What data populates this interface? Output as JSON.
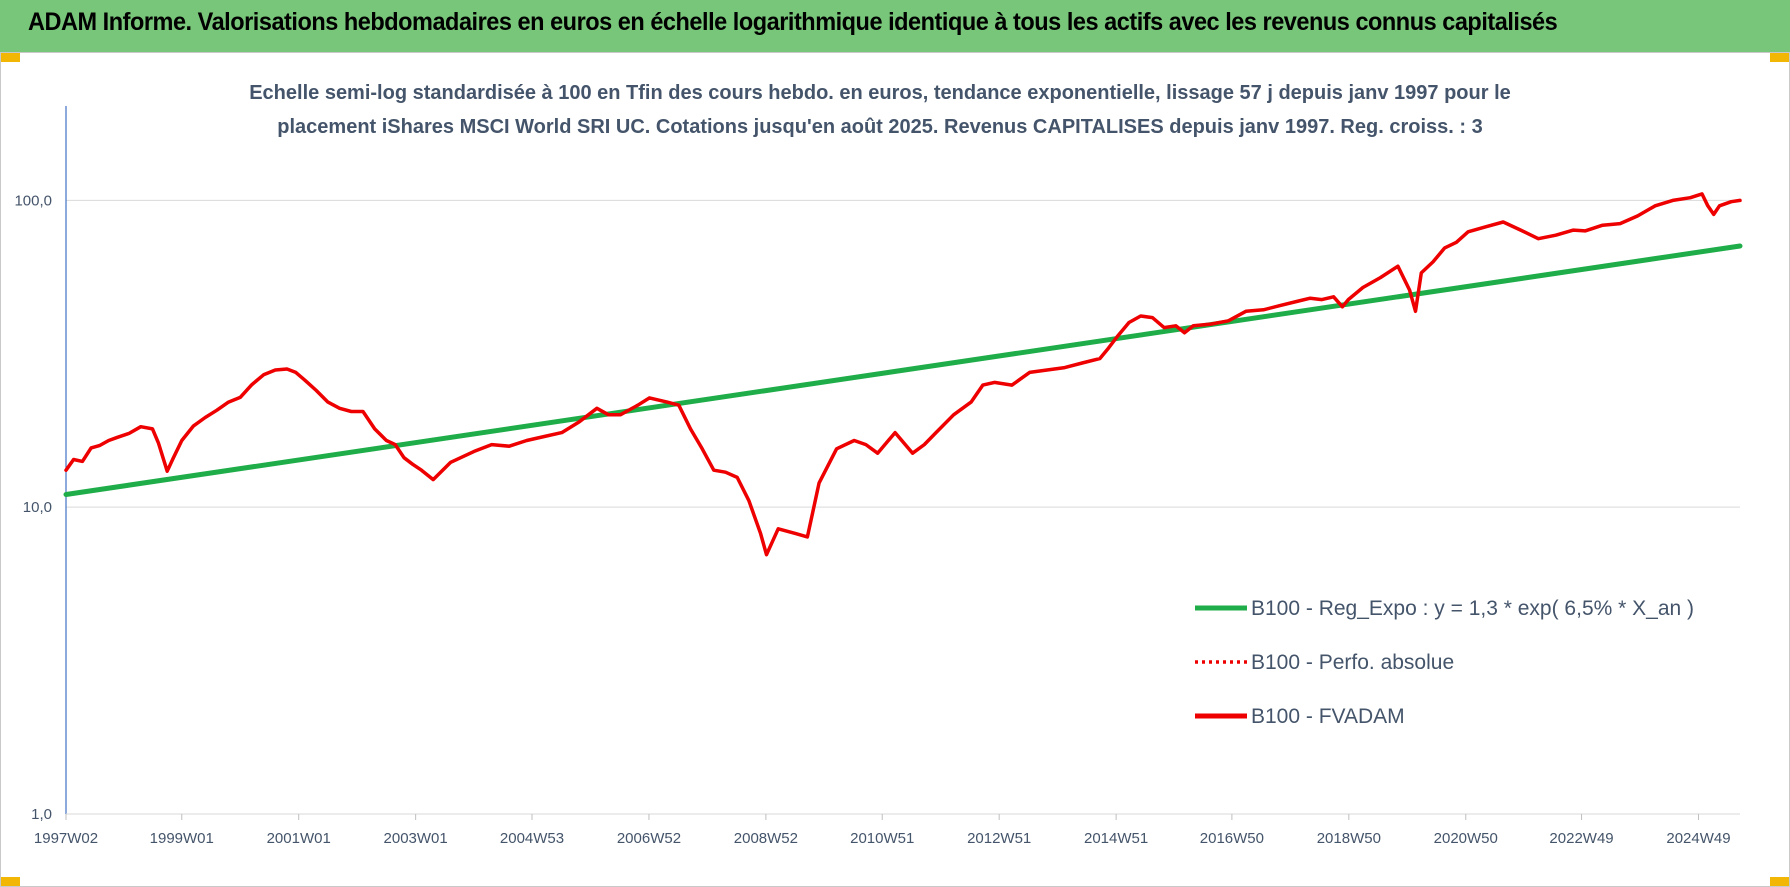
{
  "header": {
    "title": "ADAM Informe. Valorisations hebdomadaires en euros en échelle logarithmique identique à tous les actifs avec les revenus connus capitalisés"
  },
  "colors": {
    "header_bg": "#78c679",
    "corner_accent": "#f2b705",
    "trend_line": "#1fad4a",
    "series_line": "#ee0000",
    "axis": "#4472c4",
    "grid": "#d9d9d9",
    "text": "#44546a"
  },
  "chart_data": {
    "type": "line",
    "subtitle_lines": [
      "Echelle semi-log standardisée à 100 en Tfin des cours hebdo. en euros, tendance exponentielle, lissage 57 j depuis janv 1997 pour le",
      "placement iShares MSCI World SRI UC. Cotations jusqu'en août 2025. Revenus CAPITALISES depuis janv 1997. Reg. croiss. : 3"
    ],
    "y_scale": "log",
    "ylim": [
      1,
      200
    ],
    "y_ticks": [
      {
        "value": 1,
        "label": "1,0"
      },
      {
        "value": 10,
        "label": "10,0"
      },
      {
        "value": 100,
        "label": "100,0"
      }
    ],
    "xlim": [
      1997.02,
      2025.65
    ],
    "x_ticks": [
      {
        "value": 1997.02,
        "label": "1997W02"
      },
      {
        "value": 1999.0,
        "label": "1999W01"
      },
      {
        "value": 2001.0,
        "label": "2001W01"
      },
      {
        "value": 2003.0,
        "label": "2003W01"
      },
      {
        "value": 2004.99,
        "label": "2004W53"
      },
      {
        "value": 2006.99,
        "label": "2006W52"
      },
      {
        "value": 2008.99,
        "label": "2008W52"
      },
      {
        "value": 2010.98,
        "label": "2010W51"
      },
      {
        "value": 2012.98,
        "label": "2012W51"
      },
      {
        "value": 2014.98,
        "label": "2014W51"
      },
      {
        "value": 2016.96,
        "label": "2016W50"
      },
      {
        "value": 2018.96,
        "label": "2018W50"
      },
      {
        "value": 2020.96,
        "label": "2020W50"
      },
      {
        "value": 2022.94,
        "label": "2022W49"
      },
      {
        "value": 2024.94,
        "label": "2024W49"
      }
    ],
    "grid": {
      "horizontal": true,
      "vertical": false
    },
    "legend_position": "right",
    "series": [
      {
        "name": "B100 - Reg_Expo : y = 1,3 * exp( 6,5% *  X_an )",
        "style": "solid",
        "color": "#1fad4a",
        "x": [
          1997.02,
          2025.65
        ],
        "y": [
          11.0,
          71.0
        ]
      },
      {
        "name": "B100 - Perfo. absolue",
        "style": "dotted",
        "color": "#ee0000",
        "x": [],
        "y": []
      },
      {
        "name": "B100 - FVADAM",
        "style": "solid",
        "color": "#ee0000",
        "x": [
          1997.02,
          1997.15,
          1997.3,
          1997.45,
          1997.6,
          1997.75,
          1997.9,
          1998.1,
          1998.3,
          1998.5,
          1998.6,
          1998.75,
          1998.85,
          1999.0,
          1999.2,
          1999.4,
          1999.6,
          1999.8,
          2000.0,
          2000.2,
          2000.4,
          2000.6,
          2000.8,
          2000.95,
          2001.1,
          2001.3,
          2001.5,
          2001.7,
          2001.9,
          2002.1,
          2002.3,
          2002.5,
          2002.65,
          2002.8,
          2002.95,
          2003.1,
          2003.3,
          2003.6,
          2004.0,
          2004.3,
          2004.6,
          2004.9,
          2005.2,
          2005.5,
          2005.8,
          2006.1,
          2006.3,
          2006.5,
          2006.8,
          2007.0,
          2007.3,
          2007.5,
          2007.7,
          2007.9,
          2008.1,
          2008.3,
          2008.5,
          2008.7,
          2008.9,
          2009.0,
          2009.2,
          2009.5,
          2009.7,
          2009.9,
          2010.2,
          2010.5,
          2010.7,
          2010.9,
          2011.2,
          2011.5,
          2011.7,
          2011.9,
          2012.2,
          2012.5,
          2012.7,
          2012.9,
          2013.2,
          2013.5,
          2013.8,
          2014.1,
          2014.4,
          2014.7,
          2014.85,
          2015.0,
          2015.2,
          2015.4,
          2015.6,
          2015.8,
          2016.0,
          2016.15,
          2016.3,
          2016.6,
          2016.9,
          2017.2,
          2017.5,
          2017.8,
          2018.1,
          2018.3,
          2018.5,
          2018.7,
          2018.85,
          2018.95,
          2019.2,
          2019.5,
          2019.8,
          2020.0,
          2020.1,
          2020.2,
          2020.4,
          2020.6,
          2020.8,
          2021.0,
          2021.3,
          2021.6,
          2021.9,
          2022.2,
          2022.5,
          2022.8,
          2023.0,
          2023.3,
          2023.6,
          2023.9,
          2024.2,
          2024.5,
          2024.8,
          2025.0,
          2025.1,
          2025.2,
          2025.3,
          2025.5,
          2025.65
        ],
        "y": [
          13.2,
          14.3,
          14.1,
          15.6,
          15.9,
          16.5,
          16.9,
          17.4,
          18.3,
          18.0,
          16.2,
          13.1,
          14.4,
          16.5,
          18.4,
          19.6,
          20.7,
          22.0,
          22.8,
          25.1,
          27.0,
          28.0,
          28.2,
          27.5,
          26.0,
          24.0,
          22.0,
          21.0,
          20.5,
          20.5,
          18.0,
          16.5,
          16.0,
          14.5,
          13.8,
          13.2,
          12.3,
          14.0,
          15.2,
          16.0,
          15.8,
          16.5,
          17.0,
          17.5,
          19.0,
          21.0,
          20.0,
          20.0,
          21.5,
          22.7,
          22.0,
          21.5,
          18.0,
          15.5,
          13.2,
          13.0,
          12.5,
          10.5,
          8.2,
          7.0,
          8.5,
          8.2,
          8.0,
          12.0,
          15.5,
          16.5,
          16.0,
          15.0,
          17.5,
          15.0,
          16.0,
          17.5,
          20.0,
          22.0,
          25.0,
          25.5,
          25.0,
          27.5,
          28.0,
          28.5,
          29.5,
          30.5,
          33.0,
          36.0,
          40.0,
          42.0,
          41.5,
          38.5,
          39.0,
          37.0,
          39.0,
          39.5,
          40.5,
          43.5,
          44.0,
          45.5,
          47.0,
          48.0,
          47.5,
          48.5,
          45.0,
          47.5,
          52.0,
          56.0,
          61.0,
          51.0,
          43.5,
          58.0,
          63.0,
          70.0,
          73.0,
          79.0,
          82.0,
          85.0,
          80.0,
          75.0,
          77.0,
          80.0,
          79.5,
          83.0,
          84.0,
          89.0,
          96.0,
          100.0,
          102.0,
          105.0,
          96.0,
          90.0,
          96.0,
          99.0,
          100.0
        ]
      }
    ]
  }
}
